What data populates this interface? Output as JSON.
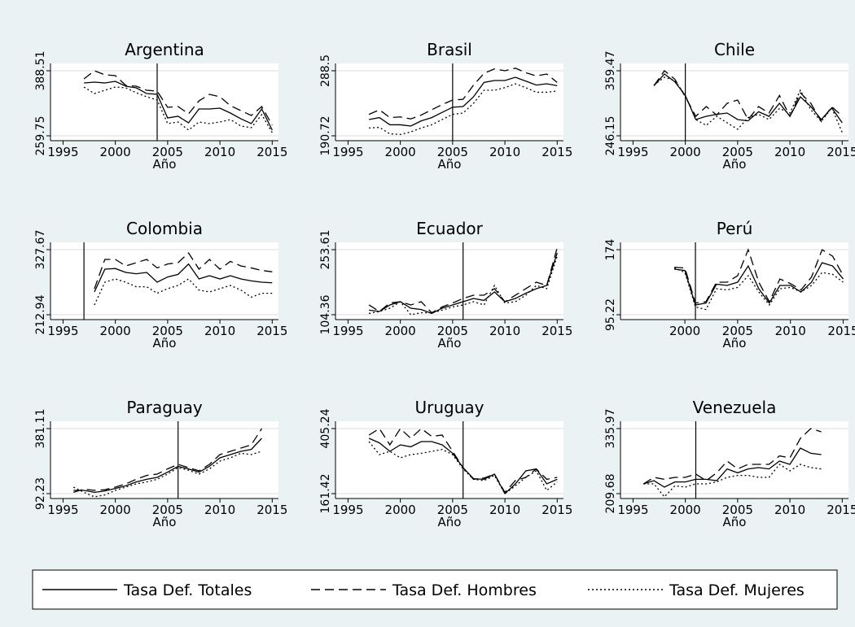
{
  "chart_data": [
    {
      "type": "line",
      "title": "Argentina",
      "xlabel": "Año",
      "vline": 2004,
      "xlim": [
        1993.8,
        2015.6
      ],
      "xticks": [
        1995,
        2000,
        2005,
        2010,
        2015
      ],
      "ylim": [
        250.09,
        403.0
      ],
      "yticks": [
        259.75,
        388.51
      ],
      "grid": true,
      "x": [
        1997,
        1998,
        1999,
        2000,
        2001,
        2002,
        2003,
        2004,
        2005,
        2006,
        2007,
        2008,
        2009,
        2010,
        2011,
        2012,
        2013,
        2014,
        2015
      ],
      "series": [
        {
          "name": "Tasa Def. Totales",
          "color": "#000000",
          "dash": "solid",
          "values": [
            364.4,
            366,
            364.4,
            367.6,
            357.9,
            354.7,
            343.4,
            341.8,
            295.2,
            298.4,
            285.5,
            312.9,
            312.9,
            314.5,
            304.8,
            293.5,
            283.9,
            312.9,
            271
          ]
        },
        {
          "name": "Tasa Def. Hombres",
          "color": "#000000",
          "dash": "dashed",
          "values": [
            372.4,
            388.5,
            380.5,
            378.9,
            359.5,
            357.9,
            349.9,
            348.3,
            316.1,
            317.7,
            303.2,
            328.9,
            341.8,
            337,
            319.3,
            309.6,
            300,
            317.7,
            280.7
          ]
        },
        {
          "name": "Tasa Def. Mujeres",
          "color": "#000000",
          "dash": "dotted",
          "values": [
            356.3,
            343.4,
            349.9,
            356.3,
            354.7,
            345,
            337,
            330.6,
            283.9,
            287.1,
            271,
            287.1,
            283.9,
            287.1,
            291.9,
            279.1,
            275.8,
            301.6,
            266.2
          ]
        }
      ]
    },
    {
      "type": "line",
      "title": "Brasil",
      "xlabel": "Año",
      "vline": 2005,
      "xlim": [
        1993.8,
        2015.6
      ],
      "xticks": [
        1995,
        2000,
        2005,
        2010,
        2015
      ],
      "ylim": [
        183.39,
        299.5
      ],
      "yticks": [
        190.72,
        288.5
      ],
      "grid": true,
      "x": [
        1997,
        1998,
        1999,
        2000,
        2001,
        2002,
        2003,
        2004,
        2005,
        2006,
        2007,
        2008,
        2009,
        2010,
        2011,
        2012,
        2013,
        2014,
        2015
      ],
      "series": [
        {
          "color": "#000000",
          "dash": "solid",
          "values": [
            215.2,
            218.1,
            207.3,
            207.3,
            205.4,
            213.2,
            218.1,
            225.9,
            233.7,
            234.7,
            249.4,
            270.9,
            273.8,
            273.8,
            278.7,
            272.9,
            267,
            268.9,
            266
          ]
        },
        {
          "color": "#000000",
          "dash": "dashed",
          "values": [
            223,
            229.8,
            218.1,
            219.1,
            216.1,
            222,
            229.8,
            237.7,
            244.5,
            245.5,
            267,
            284.6,
            291.4,
            288.5,
            292.4,
            285.6,
            280.7,
            283.6,
            270.9
          ]
        },
        {
          "color": "#000000",
          "dash": "dotted",
          "values": [
            202.5,
            203.4,
            193.7,
            192.7,
            196.6,
            202.5,
            207.3,
            215.2,
            223,
            224.9,
            239.6,
            259.2,
            259.2,
            263.1,
            268.9,
            263.1,
            256.2,
            256.2,
            258.2
          ]
        }
      ]
    },
    {
      "type": "line",
      "title": "Chile",
      "xlabel": "Año",
      "vline": 2000,
      "xlim": [
        1993.8,
        2015.6
      ],
      "xticks": [
        1995,
        2000,
        2005,
        2010,
        2015
      ],
      "ylim": [
        237.65,
        372.2
      ],
      "yticks": [
        246.15,
        359.47
      ],
      "grid": true,
      "x": [
        1997,
        1998,
        1999,
        2000,
        2001,
        2002,
        2003,
        2004,
        2005,
        2006,
        2007,
        2008,
        2009,
        2010,
        2011,
        2012,
        2013,
        2014,
        2015
      ],
      "series": [
        {
          "color": "#000000",
          "dash": "solid",
          "values": [
            333.4,
            353.8,
            340.2,
            316.4,
            274.5,
            280.1,
            283.5,
            285.8,
            274.5,
            272.2,
            288.1,
            280.1,
            302.8,
            280.1,
            314.1,
            297.1,
            274.5,
            294.9,
            268.8
          ]
        },
        {
          "color": "#000000",
          "dash": "dashed",
          "values": [
            333.4,
            359.5,
            344.7,
            314.1,
            280.1,
            297.1,
            282.4,
            302.8,
            308.5,
            274.5,
            297.1,
            285.8,
            316.4,
            280.1,
            320.9,
            302.8,
            271.1,
            297.1,
            280.1
          ]
        },
        {
          "color": "#000000",
          "dash": "dotted",
          "values": [
            334.5,
            348.1,
            342.5,
            316.4,
            274.5,
            264.3,
            280.1,
            268.8,
            257.5,
            277.9,
            283.5,
            274.5,
            293.7,
            285.8,
            325.5,
            291.5,
            271.1,
            294.9,
            251.8
          ]
        }
      ]
    },
    {
      "type": "line",
      "title": "Colombia",
      "xlabel": "Año",
      "vline": 1997,
      "xlim": [
        1993.8,
        2015.6
      ],
      "xticks": [
        1995,
        2000,
        2005,
        2010,
        2015
      ],
      "ylim": [
        204.34,
        340.6
      ],
      "yticks": [
        212.94,
        327.67
      ],
      "grid": true,
      "x": [
        1998,
        1999,
        2000,
        2001,
        2002,
        2003,
        2004,
        2005,
        2006,
        2007,
        2008,
        2009,
        2010,
        2011,
        2012,
        2013,
        2014,
        2015
      ],
      "series": [
        {
          "color": "#000000",
          "dash": "solid",
          "values": [
            253.1,
            293.3,
            294.4,
            287.5,
            285.2,
            287.5,
            270.3,
            279.5,
            284.1,
            302.4,
            276,
            281.8,
            276,
            281.8,
            276,
            272.6,
            270.3,
            269.2
          ]
        },
        {
          "color": "#000000",
          "dash": "dashed",
          "values": [
            258.8,
            310.5,
            310.5,
            299,
            304.7,
            310.5,
            295.5,
            302.4,
            304.7,
            321.9,
            293.3,
            310.5,
            293.3,
            307,
            299,
            295.5,
            291,
            288.7
          ]
        },
        {
          "color": "#000000",
          "dash": "dotted",
          "values": [
            230.1,
            270.3,
            276,
            270.3,
            262.3,
            262.3,
            250.8,
            258.8,
            264.6,
            276,
            256.5,
            253.1,
            258.8,
            264.6,
            256.5,
            243.9,
            250.8,
            250.8
          ]
        }
      ]
    },
    {
      "type": "line",
      "title": "Ecuador",
      "xlabel": "Año",
      "vline": 2006,
      "xlim": [
        1993.8,
        2015.6
      ],
      "xticks": [
        1995,
        2000,
        2005,
        2010,
        2015
      ],
      "ylim": [
        93.17,
        270.4
      ],
      "yticks": [
        104.36,
        253.61
      ],
      "grid": true,
      "x": [
        1997,
        1998,
        1999,
        2000,
        2001,
        2002,
        2003,
        2004,
        2005,
        2006,
        2007,
        2008,
        2009,
        2010,
        2011,
        2012,
        2013,
        2014,
        2015
      ],
      "series": [
        {
          "color": "#000000",
          "dash": "solid",
          "values": [
            114.8,
            111.8,
            126.7,
            134.2,
            119.3,
            116.3,
            107.4,
            119.3,
            126.7,
            134.2,
            141.7,
            137.2,
            156.6,
            134.2,
            141.7,
            153.6,
            164.1,
            171.5,
            246.1
          ]
        },
        {
          "color": "#000000",
          "dash": "dashed",
          "values": [
            126.8,
            111.8,
            131.2,
            134.2,
            126.8,
            134.2,
            108.8,
            122.3,
            131.2,
            141.7,
            149.1,
            149.1,
            164.1,
            134.2,
            149.1,
            164.1,
            179,
            171.5,
            258.1
          ]
        },
        {
          "color": "#000000",
          "dash": "dotted",
          "values": [
            107.3,
            111.8,
            119.3,
            134.2,
            104.4,
            108.8,
            108.8,
            114.8,
            122.3,
            126.7,
            134.2,
            126.8,
            171.5,
            131.2,
            134.2,
            149.1,
            171.5,
            164.1,
            238.7
          ]
        }
      ]
    },
    {
      "type": "line",
      "title": "Perú",
      "xlabel": "Año",
      "vline": 2001,
      "xlim": [
        1993.9,
        2015.5
      ],
      "xticks": [
        2000,
        2005,
        2010,
        2015
      ],
      "ylim": [
        89.31,
        182.9
      ],
      "yticks": [
        95.22,
        174
      ],
      "grid": true,
      "x": [
        1999,
        2000,
        2001,
        2002,
        2003,
        2004,
        2005,
        2006,
        2007,
        2008,
        2009,
        2010,
        2011,
        2012,
        2013,
        2014,
        2015
      ],
      "series": [
        {
          "color": "#000000",
          "dash": "solid",
          "values": [
            150.4,
            148.8,
            107,
            109.4,
            132.2,
            130.7,
            134.6,
            154.3,
            126.7,
            109.4,
            130.7,
            130.7,
            122.8,
            134.6,
            158.2,
            154.3,
            138.5
          ]
        },
        {
          "color": "#000000",
          "dash": "dashed",
          "values": [
            152.7,
            151.9,
            109.4,
            111,
            134.6,
            134.6,
            142.5,
            174,
            134.6,
            111,
            138.5,
            133,
            125.2,
            140.9,
            174,
            166.1,
            142.5
          ]
        },
        {
          "color": "#000000",
          "dash": "dotted",
          "values": [
            151.9,
            146.4,
            104.7,
            101.5,
            126.7,
            125.2,
            128.3,
            142.5,
            122.8,
            107,
            126.7,
            128.3,
            122.8,
            130.7,
            146.4,
            144.1,
            134.6
          ]
        }
      ]
    },
    {
      "type": "line",
      "title": "Paraguay",
      "xlabel": "Año",
      "vline": 2006,
      "xlim": [
        1993.8,
        2015.6
      ],
      "xticks": [
        1995,
        2000,
        2005,
        2010,
        2015
      ],
      "ylim": [
        70.56,
        413.6
      ],
      "yticks": [
        92.23,
        381.11
      ],
      "grid": true,
      "x": [
        1996,
        1997,
        1998,
        1999,
        2000,
        2001,
        2002,
        2003,
        2004,
        2005,
        2006,
        2007,
        2008,
        2009,
        2010,
        2011,
        2012,
        2013,
        2014
      ],
      "series": [
        {
          "color": "#000000",
          "dash": "solid",
          "values": [
            106.7,
            106.7,
            98,
            103.8,
            115.3,
            126.9,
            144.2,
            155.8,
            164.5,
            187.6,
            213.6,
            202,
            187.6,
            213.6,
            251.1,
            265.6,
            280,
            288.7,
            337.8
          ]
        },
        {
          "color": "#000000",
          "dash": "dashed",
          "values": [
            98,
            112.4,
            106.7,
            109.6,
            121.1,
            135.6,
            155.8,
            173.1,
            178.9,
            202,
            222.2,
            207.8,
            193.3,
            222.2,
            265.6,
            280,
            294.4,
            308.9,
            381.1
          ]
        },
        {
          "color": "#000000",
          "dash": "dotted",
          "values": [
            121.1,
            98,
            77.8,
            86.5,
            106.7,
            121.1,
            135.6,
            144.2,
            155.8,
            178.9,
            207.8,
            196.2,
            178.9,
            202,
            236.7,
            251.1,
            271.3,
            265.6,
            280
          ]
        }
      ]
    },
    {
      "type": "line",
      "title": "Uruguay",
      "xlabel": "Año",
      "vline": 2006,
      "xlim": [
        1993.8,
        2015.6
      ],
      "xticks": [
        1995,
        2000,
        2005,
        2010,
        2015
      ],
      "ylim": [
        143.13,
        432.7
      ],
      "yticks": [
        161.42,
        405.24
      ],
      "grid": true,
      "x": [
        1997,
        1998,
        1999,
        2000,
        2001,
        2002,
        2003,
        2004,
        2005,
        2006,
        2007,
        2008,
        2009,
        2010,
        2011,
        2012,
        2013,
        2014,
        2015
      ],
      "series": [
        {
          "color": "#000000",
          "dash": "solid",
          "values": [
            368.7,
            351.6,
            319.9,
            344.3,
            337,
            356.5,
            356.5,
            344.3,
            312.6,
            258.9,
            217.5,
            215.1,
            234.6,
            161.4,
            198,
            246.8,
            254.1,
            198,
            215.1
          ]
        },
        {
          "color": "#000000",
          "dash": "dashed",
          "values": [
            380.9,
            405.2,
            344.3,
            405.2,
            368.7,
            405.2,
            376,
            380.9,
            319.9,
            258.9,
            215.1,
            219.9,
            234.6,
            166.3,
            210.2,
            222.4,
            254.1,
            215.1,
            222.4
          ]
        },
        {
          "color": "#000000",
          "dash": "dotted",
          "values": [
            356.5,
            307.7,
            319.9,
            295.5,
            307.7,
            312.6,
            319.9,
            327.2,
            307.7,
            254.1,
            215.1,
            210.2,
            229.7,
            161.4,
            190.7,
            222.4,
            246.8,
            173.6,
            205.3
          ]
        }
      ]
    },
    {
      "type": "line",
      "title": "Venezuela",
      "xlabel": "Año",
      "vline": 2001,
      "xlim": [
        1993.8,
        2015.6
      ],
      "xticks": [
        1995,
        2000,
        2005,
        2010,
        2015
      ],
      "ylim": [
        200.21,
        350.2
      ],
      "yticks": [
        209.68,
        335.97
      ],
      "grid": true,
      "x": [
        1996,
        1997,
        1998,
        1999,
        2000,
        2001,
        2002,
        2003,
        2004,
        2005,
        2006,
        2007,
        2008,
        2009,
        2010,
        2011,
        2012,
        2013
      ],
      "series": [
        {
          "color": "#000000",
          "dash": "solid",
          "values": [
            228.6,
            234.9,
            222.3,
            232.4,
            232.4,
            237.5,
            237.5,
            234.9,
            257.7,
            250.1,
            257.7,
            260.2,
            257.7,
            272.8,
            266.5,
            298.1,
            288,
            285.4
          ]
        },
        {
          "color": "#000000",
          "dash": "dashed",
          "values": [
            228.6,
            241.3,
            237.5,
            241.3,
            241.3,
            247.6,
            234.9,
            250.1,
            272.8,
            257.7,
            266.5,
            266.5,
            266.5,
            282.9,
            279.1,
            317,
            336,
            329.7
          ]
        },
        {
          "color": "#000000",
          "dash": "dotted",
          "values": [
            228.6,
            228.6,
            203.4,
            224.8,
            222.3,
            228.6,
            228.6,
            232.4,
            241.3,
            245,
            245,
            241.3,
            241.3,
            266.5,
            253.9,
            266.5,
            260.2,
            257.7
          ]
        }
      ]
    }
  ]
}
